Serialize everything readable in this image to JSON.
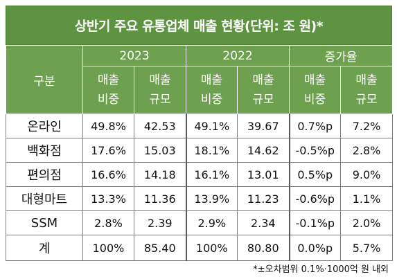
{
  "title": "상반기 주요 유통업체 매출 현황(단위: 조 원)*",
  "header": {
    "gubun": "구분",
    "years": [
      "2023",
      "2022",
      "증가율"
    ],
    "sub": [
      {
        "l1": "매출",
        "l2": "비중"
      },
      {
        "l1": "매출",
        "l2": "규모"
      },
      {
        "l1": "매출",
        "l2": "비중"
      },
      {
        "l1": "매출",
        "l2": "규모"
      },
      {
        "l1": "매출",
        "l2": "비중"
      },
      {
        "l1": "매출",
        "l2": "규모"
      }
    ]
  },
  "rows": [
    {
      "label": "온라인",
      "values": [
        "49.8%",
        "42.53",
        "49.1%",
        "39.67",
        "0.7%p",
        "7.2%"
      ]
    },
    {
      "label": "백화점",
      "values": [
        "17.6%",
        "15.03",
        "18.1%",
        "14.62",
        "-0.5%p",
        "2.8%"
      ]
    },
    {
      "label": "편의점",
      "values": [
        "16.6%",
        "14.18",
        "16.1%",
        "13.01",
        "0.5%p",
        "9.0%"
      ]
    },
    {
      "label": "대형마트",
      "values": [
        "13.3%",
        "11.36",
        "13.9%",
        "11.23",
        "-0.6%p",
        "1.1%"
      ]
    },
    {
      "label": "SSM",
      "values": [
        "2.8%",
        "2.39",
        "2.9%",
        "2.34",
        "-0.1%p",
        "2.0%"
      ]
    },
    {
      "label": "계",
      "values": [
        "100%",
        "85.40",
        "100%",
        "80.80",
        "0.0%p",
        "5.7%"
      ]
    }
  ],
  "footnote": "*±오차범위 0.1%·1000억 원 내외",
  "colors": {
    "header_green": "#6ea14f",
    "title_green": "#5e9441"
  }
}
